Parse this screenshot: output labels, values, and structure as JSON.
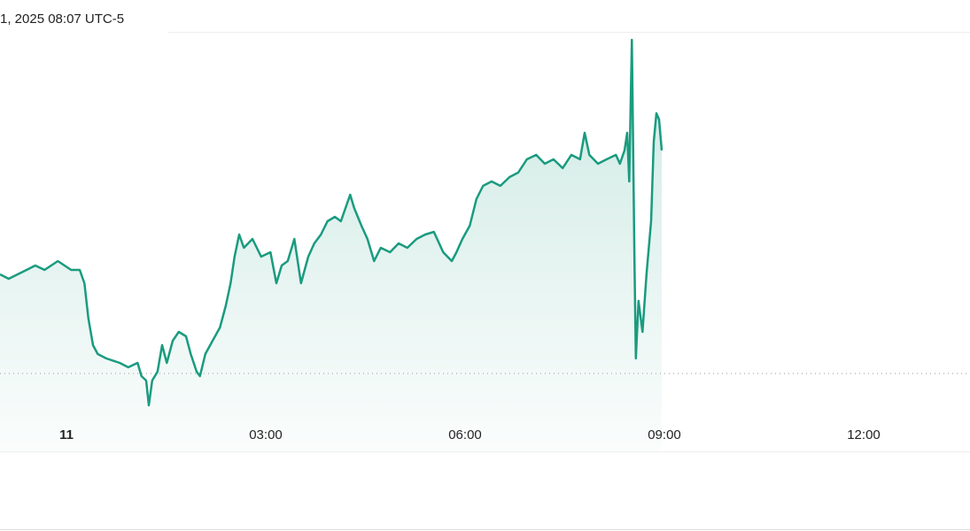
{
  "chart_data": {
    "type": "line",
    "title": "1, 2025 08:07 UTC-5",
    "x": [
      -1,
      -0.87,
      -0.6,
      -0.47,
      -0.33,
      -0.13,
      0.07,
      0.2,
      0.27,
      0.33,
      0.4,
      0.47,
      0.6,
      0.8,
      0.93,
      1.07,
      1.13,
      1.2,
      1.24,
      1.29,
      1.37,
      1.44,
      1.51,
      1.6,
      1.69,
      1.8,
      1.87,
      1.96,
      2.01,
      2.09,
      2.2,
      2.31,
      2.4,
      2.47,
      2.53,
      2.6,
      2.67,
      2.8,
      2.93,
      3.07,
      3.16,
      3.24,
      3.33,
      3.43,
      3.53,
      3.64,
      3.73,
      3.83,
      3.93,
      4.04,
      4.13,
      4.27,
      4.33,
      4.44,
      4.53,
      4.63,
      4.73,
      4.87,
      5,
      5.13,
      5.27,
      5.4,
      5.53,
      5.67,
      5.8,
      5.87,
      5.96,
      6.07,
      6.17,
      6.27,
      6.4,
      6.53,
      6.67,
      6.8,
      6.93,
      7.07,
      7.2,
      7.33,
      7.47,
      7.6,
      7.73,
      7.8,
      7.87,
      8,
      8.13,
      8.27,
      8.33,
      8.4,
      8.44,
      8.47,
      8.51,
      8.55,
      8.57,
      8.61,
      8.67,
      8.73,
      8.8,
      8.84,
      8.88,
      8.92,
      8.96
    ],
    "values": [
      200,
      195,
      205,
      210,
      205,
      215,
      205,
      205,
      190,
      150,
      120,
      110,
      105,
      100,
      95,
      100,
      85,
      80,
      52,
      80,
      90,
      120,
      100,
      125,
      135,
      130,
      110,
      90,
      85,
      110,
      125,
      140,
      165,
      190,
      220,
      245,
      230,
      240,
      220,
      225,
      190,
      210,
      215,
      240,
      190,
      220,
      235,
      245,
      260,
      265,
      260,
      290,
      275,
      255,
      240,
      215,
      230,
      225,
      235,
      230,
      240,
      245,
      248,
      225,
      215,
      225,
      240,
      255,
      285,
      300,
      305,
      300,
      310,
      315,
      330,
      335,
      325,
      330,
      320,
      335,
      330,
      360,
      335,
      325,
      330,
      335,
      325,
      340,
      360,
      305,
      465,
      210,
      105,
      170,
      135,
      200,
      260,
      350,
      382,
      375,
      340
    ],
    "color": "#1a9b7f",
    "reference_value": 88,
    "xlim": [
      -1,
      13.6
    ],
    "ylim": [
      0,
      473
    ],
    "xticks": [
      {
        "value": 0,
        "label": "11"
      },
      {
        "value": 3,
        "label": "03:00"
      },
      {
        "value": 6,
        "label": "06:00"
      },
      {
        "value": 9,
        "label": "09:00"
      },
      {
        "value": 12,
        "label": "12:00"
      }
    ]
  }
}
